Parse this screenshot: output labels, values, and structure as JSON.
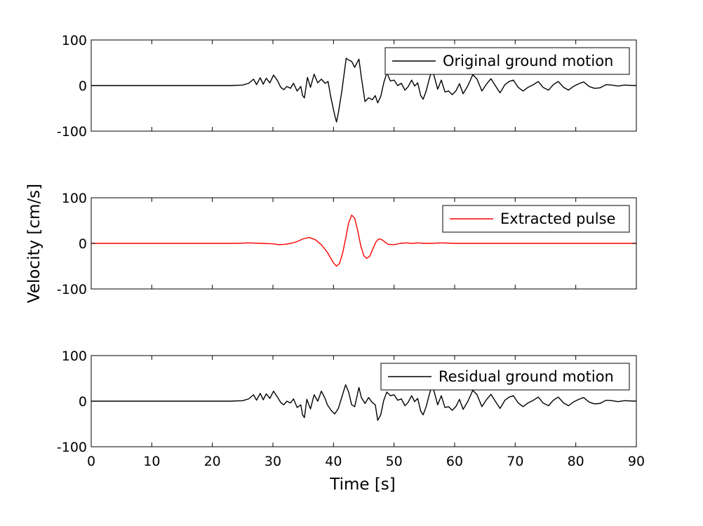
{
  "figure": {
    "ylabel": "Velocity [cm/s]",
    "xlabel": "Time [s]"
  },
  "chart_data": [
    {
      "type": "line",
      "series": [
        {
          "name": "Original ground motion",
          "color": "#000000"
        }
      ],
      "xlim": [
        0,
        90
      ],
      "ylim": [
        -100,
        100
      ],
      "x_ticks": [
        0,
        10,
        20,
        30,
        40,
        50,
        60,
        70,
        80,
        90
      ],
      "y_ticks": [
        -100,
        0,
        100
      ],
      "x_tick_labels_visible": false,
      "legend_placement": "top-right",
      "grid": false,
      "signal": [
        [
          0,
          0
        ],
        [
          23,
          0
        ],
        [
          25,
          1
        ],
        [
          26,
          5
        ],
        [
          26.8,
          14
        ],
        [
          27.3,
          2
        ],
        [
          27.9,
          17
        ],
        [
          28.4,
          3
        ],
        [
          28.9,
          16
        ],
        [
          29.5,
          6
        ],
        [
          30.1,
          23
        ],
        [
          30.7,
          12
        ],
        [
          31.3,
          -4
        ],
        [
          31.8,
          -9
        ],
        [
          32.3,
          -2
        ],
        [
          32.9,
          -6
        ],
        [
          33.4,
          5
        ],
        [
          34,
          -12
        ],
        [
          34.6,
          -2
        ],
        [
          34.9,
          -22
        ],
        [
          35.2,
          -27
        ],
        [
          35.7,
          18
        ],
        [
          36.2,
          -4
        ],
        [
          36.8,
          25
        ],
        [
          37.4,
          6
        ],
        [
          38,
          14
        ],
        [
          38.6,
          5
        ],
        [
          39.1,
          9
        ],
        [
          39.6,
          -28
        ],
        [
          40.2,
          -65
        ],
        [
          40.5,
          -80
        ],
        [
          40.8,
          -60
        ],
        [
          41.4,
          -10
        ],
        [
          42.1,
          60
        ],
        [
          42.5,
          56
        ],
        [
          43,
          53
        ],
        [
          43.5,
          40
        ],
        [
          44.2,
          58
        ],
        [
          44.6,
          18
        ],
        [
          45.2,
          -35
        ],
        [
          45.8,
          -27
        ],
        [
          46.4,
          -31
        ],
        [
          46.9,
          -22
        ],
        [
          47.3,
          -38
        ],
        [
          47.8,
          -24
        ],
        [
          48.3,
          6
        ],
        [
          48.8,
          28
        ],
        [
          49.4,
          10
        ],
        [
          50,
          12
        ],
        [
          50.6,
          0
        ],
        [
          51.2,
          5
        ],
        [
          51.8,
          -10
        ],
        [
          52.3,
          -3
        ],
        [
          52.9,
          12
        ],
        [
          53.4,
          -1
        ],
        [
          53.9,
          6
        ],
        [
          54.4,
          -22
        ],
        [
          54.8,
          -30
        ],
        [
          55.3,
          -12
        ],
        [
          55.8,
          14
        ],
        [
          56.3,
          36
        ],
        [
          56.8,
          12
        ],
        [
          57.2,
          -8
        ],
        [
          57.8,
          12
        ],
        [
          58.4,
          -14
        ],
        [
          59,
          -12
        ],
        [
          59.6,
          -20
        ],
        [
          60.2,
          -12
        ],
        [
          60.8,
          4
        ],
        [
          61.4,
          -18
        ],
        [
          62.2,
          0
        ],
        [
          63,
          24
        ],
        [
          63.7,
          14
        ],
        [
          64.5,
          -12
        ],
        [
          65.3,
          4
        ],
        [
          66,
          15
        ],
        [
          66.8,
          -2
        ],
        [
          67.5,
          -16
        ],
        [
          68.3,
          2
        ],
        [
          69,
          9
        ],
        [
          69.7,
          12
        ],
        [
          70.5,
          -4
        ],
        [
          71.3,
          -12
        ],
        [
          72.1,
          -4
        ],
        [
          73,
          2
        ],
        [
          73.8,
          9
        ],
        [
          74.6,
          -4
        ],
        [
          75.5,
          -10
        ],
        [
          76.3,
          2
        ],
        [
          77.1,
          9
        ],
        [
          78,
          -4
        ],
        [
          78.8,
          -10
        ],
        [
          79.6,
          -2
        ],
        [
          80.5,
          4
        ],
        [
          81.3,
          8
        ],
        [
          82.2,
          -2
        ],
        [
          83.1,
          -6
        ],
        [
          84,
          -5
        ],
        [
          85,
          2
        ],
        [
          86,
          1
        ],
        [
          87,
          -1
        ],
        [
          88,
          1
        ],
        [
          90,
          0
        ]
      ]
    },
    {
      "type": "line",
      "series": [
        {
          "name": "Extracted pulse",
          "color": "#ff0000"
        }
      ],
      "xlim": [
        0,
        90
      ],
      "ylim": [
        -100,
        100
      ],
      "x_ticks": [
        0,
        10,
        20,
        30,
        40,
        50,
        60,
        70,
        80,
        90
      ],
      "y_ticks": [
        -100,
        0,
        100
      ],
      "x_tick_labels_visible": false,
      "legend_placement": "top-right",
      "grid": false,
      "signal": [
        [
          0,
          0
        ],
        [
          24,
          0
        ],
        [
          26,
          1
        ],
        [
          28,
          0
        ],
        [
          30,
          -1
        ],
        [
          31,
          -3
        ],
        [
          32,
          -2
        ],
        [
          33,
          0
        ],
        [
          34,
          4
        ],
        [
          35,
          10
        ],
        [
          36,
          13
        ],
        [
          37,
          8
        ],
        [
          38,
          -3
        ],
        [
          39,
          -20
        ],
        [
          40,
          -43
        ],
        [
          40.5,
          -50
        ],
        [
          41,
          -44
        ],
        [
          41.5,
          -22
        ],
        [
          42,
          10
        ],
        [
          42.5,
          45
        ],
        [
          43,
          62
        ],
        [
          43.5,
          55
        ],
        [
          44,
          28
        ],
        [
          44.5,
          -5
        ],
        [
          45,
          -27
        ],
        [
          45.5,
          -33
        ],
        [
          46,
          -28
        ],
        [
          46.5,
          -12
        ],
        [
          47,
          3
        ],
        [
          47.5,
          10
        ],
        [
          48,
          8
        ],
        [
          48.5,
          3
        ],
        [
          49,
          -2
        ],
        [
          50,
          -3
        ],
        [
          51,
          0
        ],
        [
          52,
          1
        ],
        [
          53,
          0
        ],
        [
          54,
          1
        ],
        [
          55,
          0
        ],
        [
          56,
          0
        ],
        [
          58,
          1
        ],
        [
          60,
          0
        ],
        [
          90,
          0
        ]
      ]
    },
    {
      "type": "line",
      "series": [
        {
          "name": "Residual ground motion",
          "color": "#000000"
        }
      ],
      "xlim": [
        0,
        90
      ],
      "ylim": [
        -100,
        100
      ],
      "x_ticks": [
        0,
        10,
        20,
        30,
        40,
        50,
        60,
        70,
        80,
        90
      ],
      "y_ticks": [
        -100,
        0,
        100
      ],
      "x_tick_labels_visible": true,
      "legend_placement": "top-right",
      "grid": false,
      "signal": [
        [
          0,
          0
        ],
        [
          23,
          0
        ],
        [
          25,
          1
        ],
        [
          26,
          5
        ],
        [
          26.8,
          14
        ],
        [
          27.3,
          2
        ],
        [
          27.9,
          17
        ],
        [
          28.4,
          3
        ],
        [
          28.9,
          16
        ],
        [
          29.5,
          6
        ],
        [
          30.1,
          22
        ],
        [
          30.7,
          10
        ],
        [
          31.3,
          -3
        ],
        [
          31.8,
          -8
        ],
        [
          32.3,
          0
        ],
        [
          32.9,
          -4
        ],
        [
          33.4,
          5
        ],
        [
          34,
          -14
        ],
        [
          34.6,
          -8
        ],
        [
          34.9,
          -30
        ],
        [
          35.2,
          -36
        ],
        [
          35.6,
          4
        ],
        [
          36.2,
          -17
        ],
        [
          36.8,
          14
        ],
        [
          37.4,
          0
        ],
        [
          38,
          22
        ],
        [
          38.6,
          6
        ],
        [
          39,
          -8
        ],
        [
          39.6,
          -20
        ],
        [
          40.2,
          -28
        ],
        [
          40.8,
          -16
        ],
        [
          41.4,
          10
        ],
        [
          42,
          36
        ],
        [
          42.5,
          20
        ],
        [
          43,
          -8
        ],
        [
          43.5,
          -12
        ],
        [
          44.2,
          30
        ],
        [
          44.6,
          8
        ],
        [
          45.2,
          -5
        ],
        [
          45.8,
          8
        ],
        [
          46.4,
          -3
        ],
        [
          46.9,
          -8
        ],
        [
          47.3,
          -42
        ],
        [
          47.8,
          -30
        ],
        [
          48.3,
          2
        ],
        [
          48.8,
          20
        ],
        [
          49.4,
          12
        ],
        [
          50,
          14
        ],
        [
          50.6,
          2
        ],
        [
          51.2,
          5
        ],
        [
          51.8,
          -10
        ],
        [
          52.3,
          -3
        ],
        [
          52.9,
          12
        ],
        [
          53.4,
          -1
        ],
        [
          53.9,
          6
        ],
        [
          54.4,
          -22
        ],
        [
          54.8,
          -30
        ],
        [
          55.3,
          -12
        ],
        [
          55.8,
          14
        ],
        [
          56.3,
          36
        ],
        [
          56.8,
          12
        ],
        [
          57.2,
          -8
        ],
        [
          57.8,
          12
        ],
        [
          58.4,
          -14
        ],
        [
          59,
          -12
        ],
        [
          59.6,
          -20
        ],
        [
          60.2,
          -12
        ],
        [
          60.8,
          4
        ],
        [
          61.4,
          -18
        ],
        [
          62.2,
          0
        ],
        [
          63,
          24
        ],
        [
          63.7,
          14
        ],
        [
          64.5,
          -12
        ],
        [
          65.3,
          4
        ],
        [
          66,
          15
        ],
        [
          66.8,
          -2
        ],
        [
          67.5,
          -16
        ],
        [
          68.3,
          2
        ],
        [
          69,
          9
        ],
        [
          69.7,
          12
        ],
        [
          70.5,
          -4
        ],
        [
          71.3,
          -12
        ],
        [
          72.1,
          -4
        ],
        [
          73,
          2
        ],
        [
          73.8,
          9
        ],
        [
          74.6,
          -4
        ],
        [
          75.5,
          -10
        ],
        [
          76.3,
          2
        ],
        [
          77.1,
          9
        ],
        [
          78,
          -4
        ],
        [
          78.8,
          -10
        ],
        [
          79.6,
          -2
        ],
        [
          80.5,
          4
        ],
        [
          81.3,
          8
        ],
        [
          82.2,
          -2
        ],
        [
          83.1,
          -6
        ],
        [
          84,
          -5
        ],
        [
          85,
          2
        ],
        [
          86,
          1
        ],
        [
          87,
          -1
        ],
        [
          88,
          1
        ],
        [
          90,
          0
        ]
      ]
    }
  ]
}
